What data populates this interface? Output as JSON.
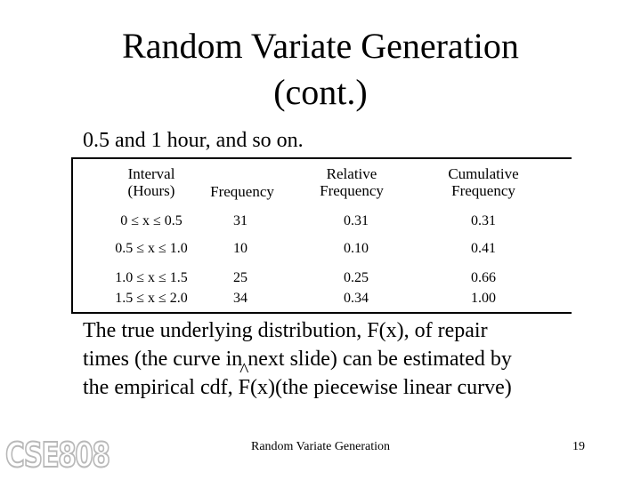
{
  "slide": {
    "title_line1": "Random Variate Generation",
    "title_line2": "(cont.)",
    "lead": "0.5 and 1 hour, and so on.",
    "table": {
      "headers": {
        "interval_l1": "Interval",
        "interval_l2": "(Hours)",
        "frequency": "Frequency",
        "relative_l1": "Relative",
        "relative_l2": "Frequency",
        "cumulative_l1": "Cumulative",
        "cumulative_l2": "Frequency"
      },
      "rows": [
        {
          "interval": "0 ≤ x ≤ 0.5",
          "frequency": "31",
          "relative": "0.31",
          "cumulative": "0.31"
        },
        {
          "interval": "0.5 ≤ x ≤ 1.0",
          "frequency": "10",
          "relative": "0.10",
          "cumulative": "0.41"
        },
        {
          "interval": "1.0 ≤ x ≤ 1.5",
          "frequency": "25",
          "relative": "0.25",
          "cumulative": "0.66"
        },
        {
          "interval": "1.5 ≤ x ≤ 2.0",
          "frequency": "34",
          "relative": "0.34",
          "cumulative": "1.00"
        }
      ]
    },
    "body": {
      "line1": "The true underlying distribution, F(x), of repair",
      "line2": "times (the curve in next slide) can be estimated by",
      "line3_pre": "the empirical cdf, ",
      "line3_hat": "^",
      "line3_f": "F",
      "line3_post": "(x)(the piecewise linear curve)"
    },
    "logo_text": "CSE808",
    "footer": "Random Variate Generation",
    "page_number": "19"
  }
}
